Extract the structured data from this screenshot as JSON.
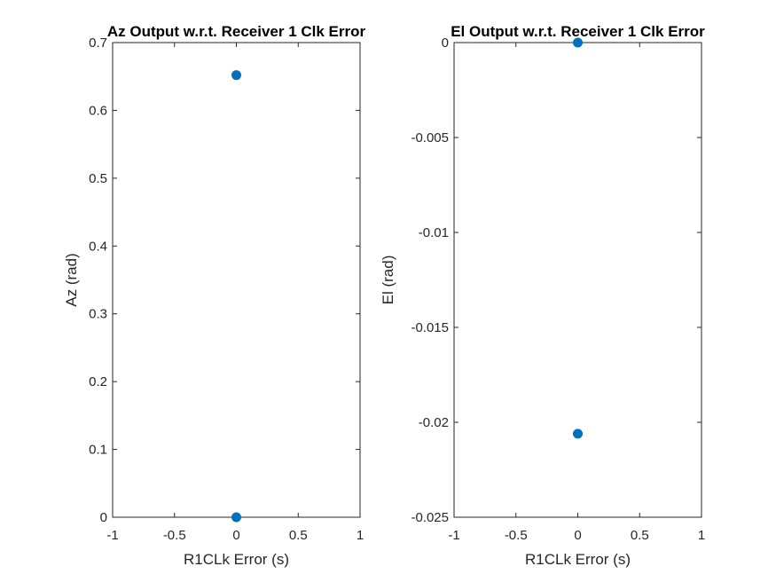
{
  "figure": {
    "background": "#ffffff",
    "marker_color": "#0072BD"
  },
  "chart_data": [
    {
      "type": "scatter",
      "title": "Az Output w.r.t. Receiver 1 Clk Error",
      "xlabel": "R1CLk Error (s)",
      "ylabel": "Az (rad)",
      "xlim": [
        -1,
        1
      ],
      "ylim": [
        0,
        0.7
      ],
      "xticks": [
        -1,
        -0.5,
        0,
        0.5,
        1
      ],
      "xtick_labels": [
        "-1",
        "-0.5",
        "0",
        "0.5",
        "1"
      ],
      "yticks": [
        0,
        0.1,
        0.2,
        0.3,
        0.4,
        0.5,
        0.6,
        0.7
      ],
      "ytick_labels": [
        "0",
        "0.1",
        "0.2",
        "0.3",
        "0.4",
        "0.5",
        "0.6",
        "0.7"
      ],
      "grid": false,
      "series": [
        {
          "x": [
            0,
            0
          ],
          "y": [
            0.652,
            0
          ]
        }
      ]
    },
    {
      "type": "scatter",
      "title": "El Output w.r.t. Receiver 1 Clk Error",
      "xlabel": "R1CLk Error (s)",
      "ylabel": "El (rad)",
      "xlim": [
        -1,
        1
      ],
      "ylim": [
        -0.025,
        0
      ],
      "xticks": [
        -1,
        -0.5,
        0,
        0.5,
        1
      ],
      "xtick_labels": [
        "-1",
        "-0.5",
        "0",
        "0.5",
        "1"
      ],
      "yticks": [
        -0.025,
        -0.02,
        -0.015,
        -0.01,
        -0.005,
        0
      ],
      "ytick_labels": [
        "-0.025",
        "-0.02",
        "-0.015",
        "-0.01",
        "-0.005",
        "0"
      ],
      "grid": false,
      "series": [
        {
          "x": [
            0,
            0
          ],
          "y": [
            0,
            -0.0206
          ]
        }
      ]
    }
  ]
}
